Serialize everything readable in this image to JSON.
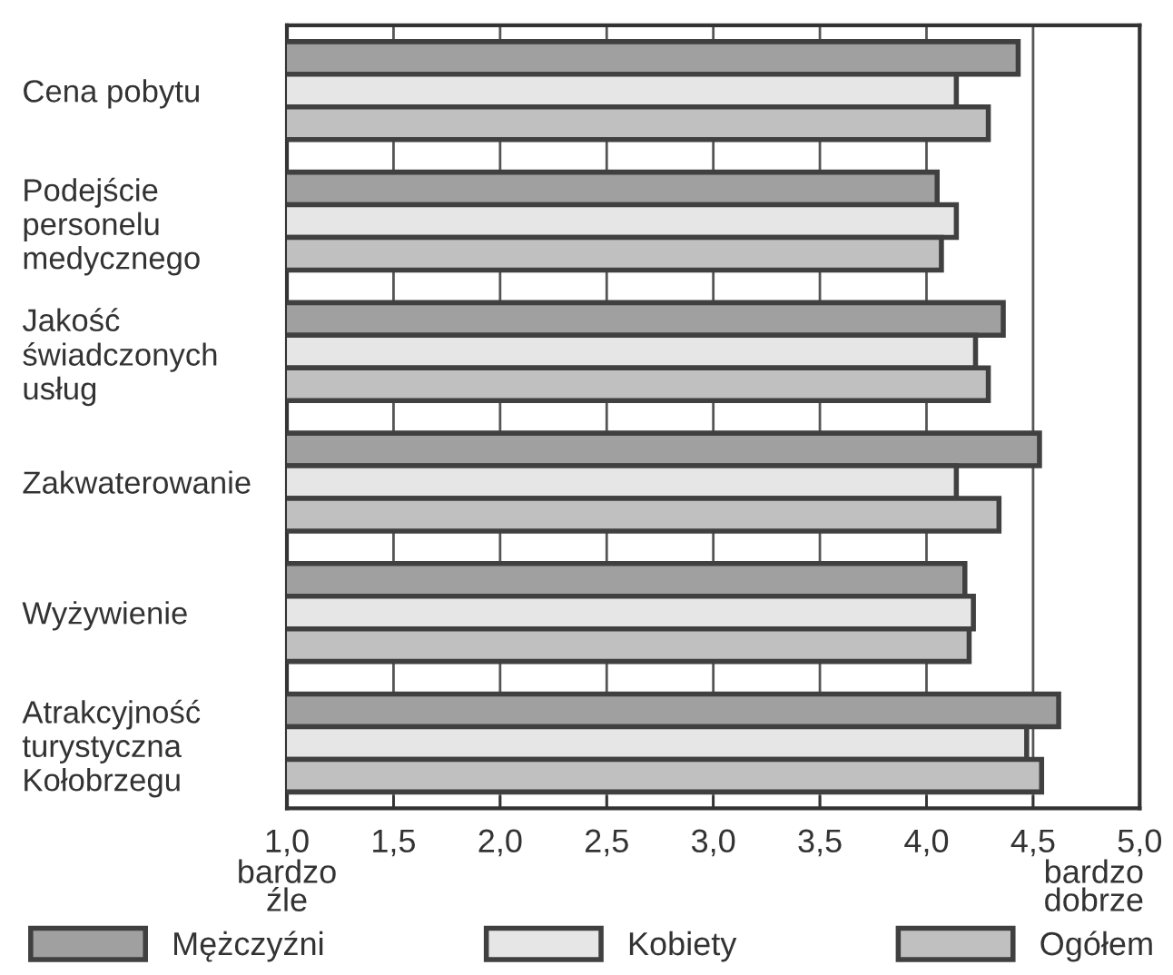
{
  "chart_data": {
    "type": "bar",
    "orientation": "horizontal",
    "categories": [
      "Cena pobytu",
      "Podejście\npersonelu\nmedycznego",
      "Jakość\nświadczonych\nusług",
      "Zakwaterowanie",
      "Wyżywienie",
      "Atrakcyjność\nturystyczna\nKołobrzegu"
    ],
    "series": [
      {
        "name": "Mężczyźni",
        "color": "#a0a0a0",
        "values": [
          4.43,
          4.05,
          4.36,
          4.53,
          4.18,
          4.62
        ]
      },
      {
        "name": "Kobiety",
        "color": "#e6e6e6",
        "values": [
          4.14,
          4.14,
          4.23,
          4.14,
          4.22,
          4.47
        ]
      },
      {
        "name": "Ogółem",
        "color": "#c0c0c0",
        "values": [
          4.29,
          4.07,
          4.29,
          4.34,
          4.2,
          4.54
        ]
      }
    ],
    "xlim": [
      1.0,
      5.0
    ],
    "xticks": [
      {
        "value": 1.0,
        "label": "1,0"
      },
      {
        "value": 1.5,
        "label": "1,5"
      },
      {
        "value": 2.0,
        "label": "2,0"
      },
      {
        "value": 2.5,
        "label": "2,5"
      },
      {
        "value": 3.0,
        "label": "3,0"
      },
      {
        "value": 3.5,
        "label": "3,5"
      },
      {
        "value": 4.0,
        "label": "4,0"
      },
      {
        "value": 4.5,
        "label": "4,5"
      },
      {
        "value": 5.0,
        "label": "5,0"
      }
    ],
    "annotations": [
      "bardzo\nźle",
      "bardzo\ndobrze"
    ],
    "grid": "x",
    "legend": "bottom"
  }
}
